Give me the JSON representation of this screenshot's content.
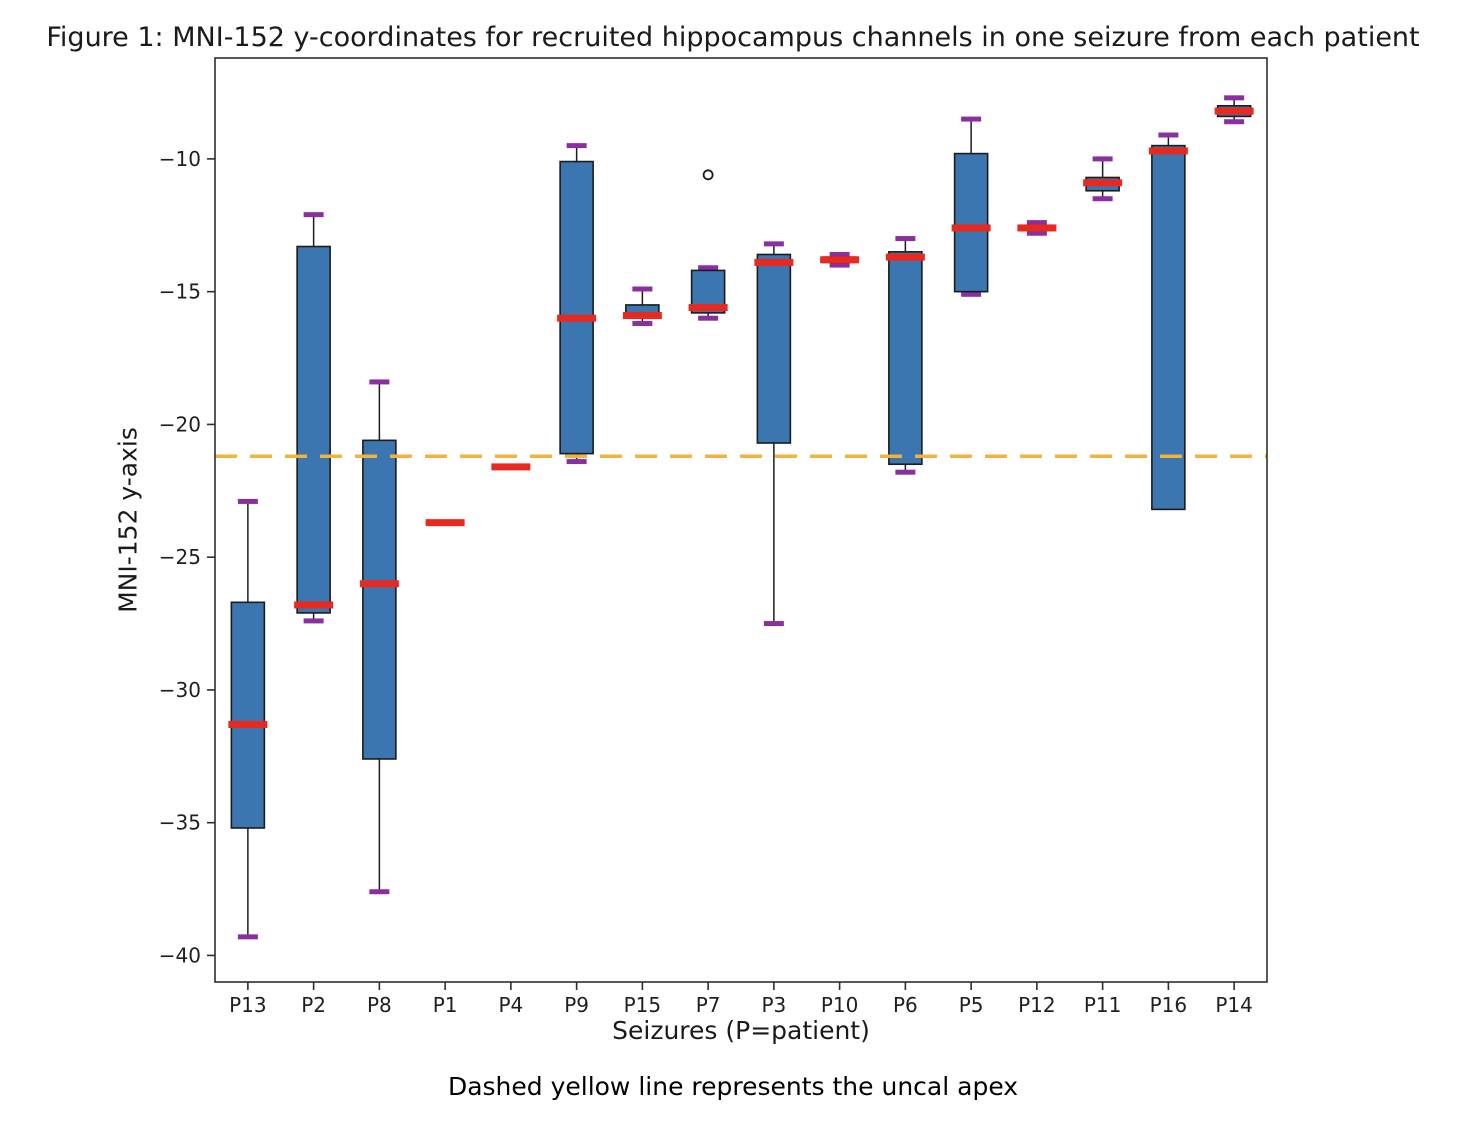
{
  "figure": {
    "title": "Figure 1: MNI-152 y-coordinates for recruited hippocampus channels in one seizure from each patient",
    "caption": "Dashed yellow line represents the uncal apex"
  },
  "chart_data": {
    "type": "box",
    "title": "Figure 1: MNI-152 y-coordinates for recruited hippocampus channels in one seizure from each patient",
    "xlabel": "Seizures (P=patient)",
    "ylabel": "MNI-152 y-axis",
    "categories": [
      "P13",
      "P2",
      "P8",
      "P1",
      "P4",
      "P9",
      "P15",
      "P7",
      "P3",
      "P10",
      "P6",
      "P5",
      "P12",
      "P11",
      "P16",
      "P14"
    ],
    "boxes": [
      {
        "label": "P13",
        "whislo": -39.3,
        "q1": -35.2,
        "med": -31.3,
        "q3": -26.7,
        "whishi": -22.9,
        "fliers": []
      },
      {
        "label": "P2",
        "whislo": -27.4,
        "q1": -27.1,
        "med": -26.8,
        "q3": -13.3,
        "whishi": -12.1,
        "fliers": []
      },
      {
        "label": "P8",
        "whislo": -37.6,
        "q1": -32.6,
        "med": -26.0,
        "q3": -20.6,
        "whishi": -18.4,
        "fliers": []
      },
      {
        "label": "P1",
        "whislo": -23.7,
        "q1": -23.7,
        "med": -23.7,
        "q3": -23.7,
        "whishi": -23.7,
        "fliers": []
      },
      {
        "label": "P4",
        "whislo": -21.6,
        "q1": -21.6,
        "med": -21.6,
        "q3": -21.6,
        "whishi": -21.6,
        "fliers": []
      },
      {
        "label": "P9",
        "whislo": -21.4,
        "q1": -21.1,
        "med": -16.0,
        "q3": -10.1,
        "whishi": -9.5,
        "fliers": []
      },
      {
        "label": "P15",
        "whislo": -16.2,
        "q1": -16.0,
        "med": -15.9,
        "q3": -15.5,
        "whishi": -14.9,
        "fliers": []
      },
      {
        "label": "P7",
        "whislo": -16.0,
        "q1": -15.8,
        "med": -15.6,
        "q3": -14.2,
        "whishi": -14.1,
        "fliers": [
          -10.6
        ]
      },
      {
        "label": "P3",
        "whislo": -27.5,
        "q1": -20.7,
        "med": -13.9,
        "q3": -13.6,
        "whishi": -13.2,
        "fliers": []
      },
      {
        "label": "P10",
        "whislo": -14.0,
        "q1": -13.9,
        "med": -13.8,
        "q3": -13.7,
        "whishi": -13.6,
        "fliers": []
      },
      {
        "label": "P6",
        "whislo": -21.8,
        "q1": -21.5,
        "med": -13.7,
        "q3": -13.5,
        "whishi": -13.0,
        "fliers": []
      },
      {
        "label": "P5",
        "whislo": -15.1,
        "q1": -15.0,
        "med": -12.6,
        "q3": -9.8,
        "whishi": -8.5,
        "fliers": []
      },
      {
        "label": "P12",
        "whislo": -12.8,
        "q1": -12.7,
        "med": -12.6,
        "q3": -12.5,
        "whishi": -12.4,
        "fliers": []
      },
      {
        "label": "P11",
        "whislo": -11.5,
        "q1": -11.2,
        "med": -10.9,
        "q3": -10.7,
        "whishi": -10.0,
        "fliers": []
      },
      {
        "label": "P16",
        "whislo": -23.2,
        "q1": -23.2,
        "med": -9.7,
        "q3": -9.5,
        "whishi": -9.1,
        "fliers": []
      },
      {
        "label": "P14",
        "whislo": -8.6,
        "q1": -8.4,
        "med": -8.2,
        "q3": -8.0,
        "whishi": -7.7,
        "fliers": []
      }
    ],
    "yticks": [
      {
        "v": -40,
        "label": "−40"
      },
      {
        "v": -35,
        "label": "−35"
      },
      {
        "v": -30,
        "label": "−30"
      },
      {
        "v": -25,
        "label": "−25"
      },
      {
        "v": -20,
        "label": "−20"
      },
      {
        "v": -15,
        "label": "−15"
      },
      {
        "v": -10,
        "label": "−10"
      }
    ],
    "ylim": [
      -41.0,
      -6.2
    ],
    "reference_line": {
      "value": -21.2,
      "style": "dashed",
      "color": "#F2B33D",
      "meaning": "uncal apex"
    },
    "grid": false,
    "legend": false,
    "colors": {
      "box_fill": "#3C76B0",
      "box_edge": "#1C1C1C",
      "median": "#E8291F",
      "cap": "#8B2FA0",
      "whisker": "#1C1C1C",
      "flier_edge": "#1C1C1C",
      "axis": "#2E2E2E",
      "text": "#1F1F1F"
    }
  }
}
